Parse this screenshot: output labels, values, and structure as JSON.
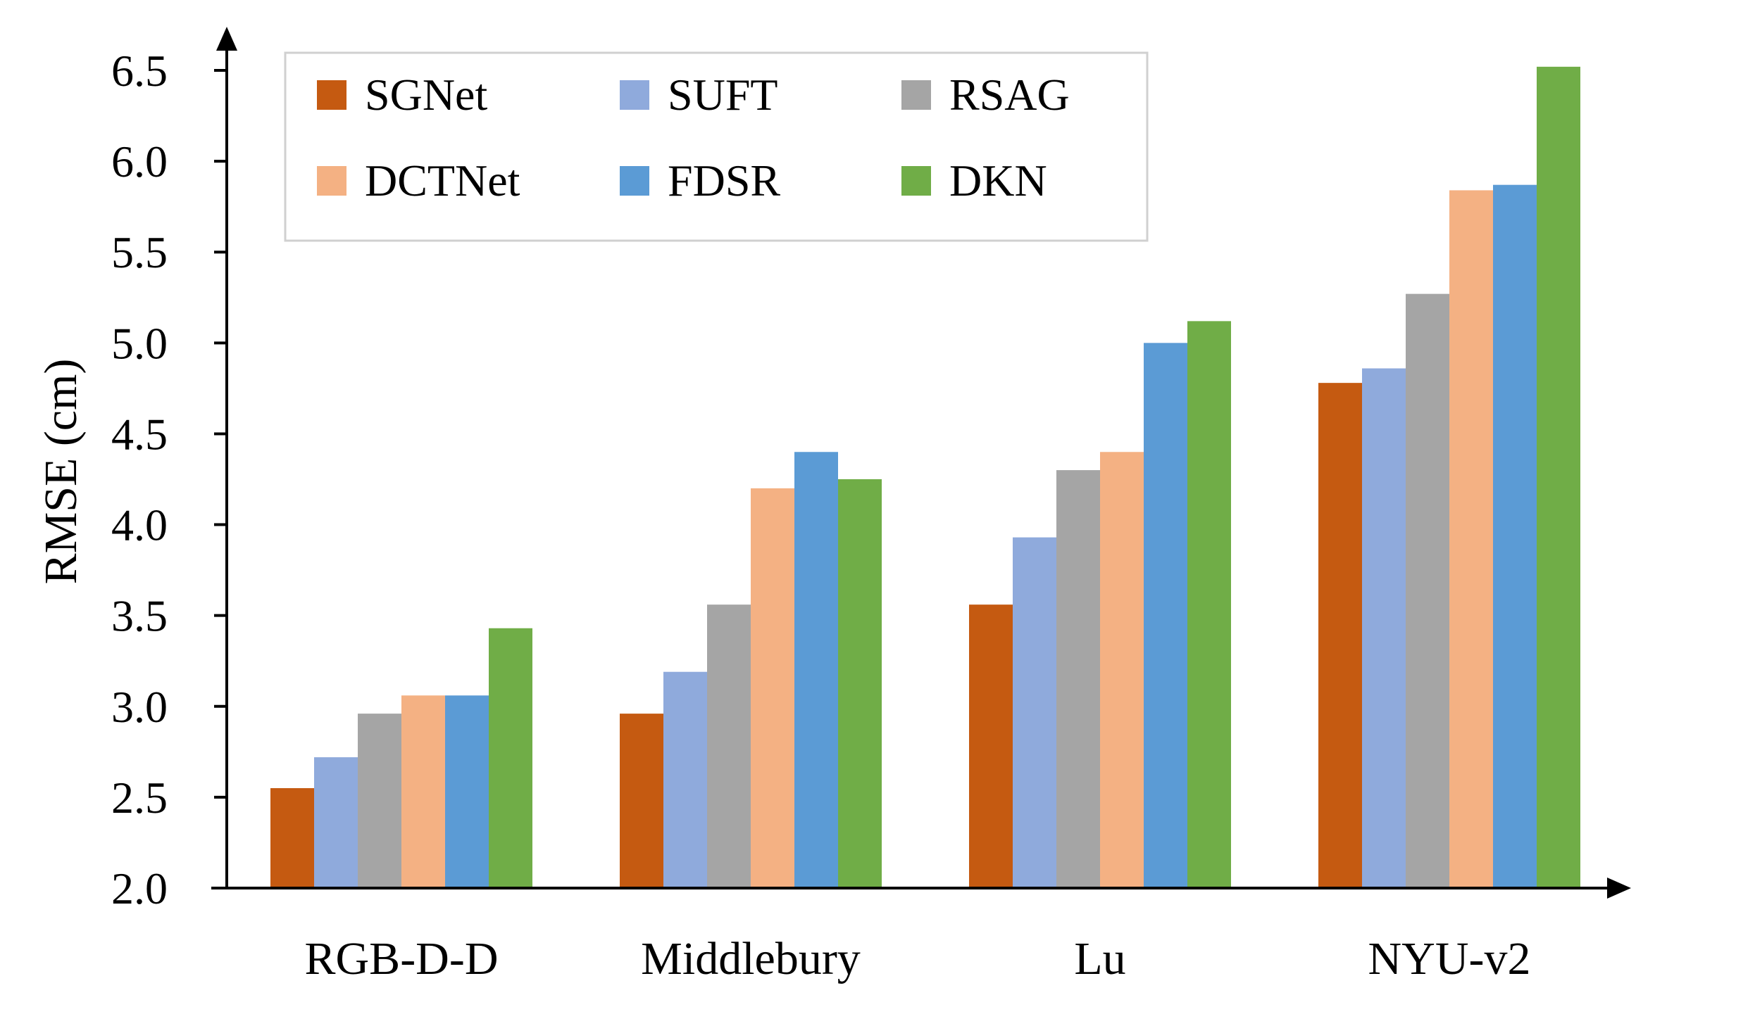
{
  "chart_data": {
    "type": "bar",
    "title": "",
    "xlabel": "",
    "ylabel": "RMSE (cm)",
    "ylim": [
      2.0,
      6.5
    ],
    "yticks": [
      "2.0",
      "2.5",
      "3.0",
      "3.5",
      "4.0",
      "4.5",
      "5.0",
      "5.5",
      "6.0",
      "6.5"
    ],
    "grid": false,
    "legend_position": "top-left",
    "categories": [
      "RGB-D-D",
      "Middlebury",
      "Lu",
      "NYU-v2"
    ],
    "series": [
      {
        "name": "SGNet",
        "color": "#C55A11",
        "values": [
          2.55,
          2.96,
          3.56,
          4.78
        ]
      },
      {
        "name": "SUFT",
        "color": "#8FAADC",
        "values": [
          2.72,
          3.19,
          3.93,
          4.86
        ]
      },
      {
        "name": "RSAG",
        "color": "#A5A5A5",
        "values": [
          2.96,
          3.56,
          4.3,
          5.27
        ]
      },
      {
        "name": "DCTNet",
        "color": "#F4B183",
        "values": [
          3.06,
          4.2,
          4.4,
          5.84
        ]
      },
      {
        "name": "FDSR",
        "color": "#5B9BD5",
        "values": [
          3.06,
          4.4,
          5.0,
          5.87
        ]
      },
      {
        "name": "DKN",
        "color": "#70AD47",
        "values": [
          3.43,
          4.25,
          5.12,
          6.52
        ]
      }
    ]
  }
}
